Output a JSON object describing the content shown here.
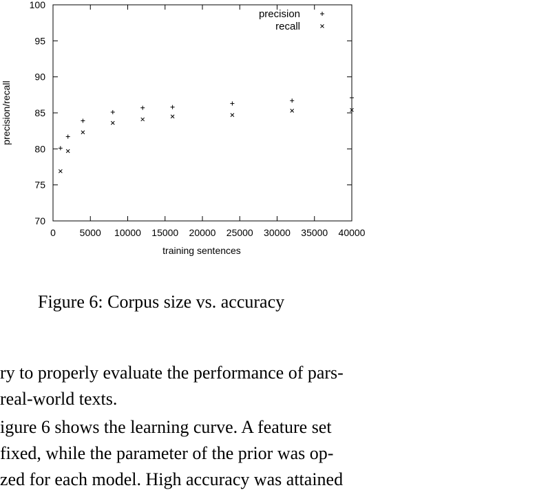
{
  "chart_data": {
    "type": "scatter",
    "xlabel": "training sentences",
    "ylabel": "precision/recall",
    "xlim": [
      0,
      40000
    ],
    "ylim": [
      70,
      100
    ],
    "x_ticks": [
      "0",
      "5000",
      "10000",
      "15000",
      "20000",
      "25000",
      "30000",
      "35000",
      "40000"
    ],
    "y_ticks": [
      "70",
      "75",
      "80",
      "85",
      "90",
      "95",
      "100"
    ],
    "legend_position": "top-right",
    "series": [
      {
        "name": "precision",
        "marker": "+",
        "x": [
          1000,
          2000,
          4000,
          8000,
          12000,
          16000,
          24000,
          32000,
          40000
        ],
        "y": [
          80.1,
          81.7,
          83.9,
          85.1,
          85.7,
          85.8,
          86.3,
          86.7,
          87.1
        ]
      },
      {
        "name": "recall",
        "marker": "x",
        "x": [
          1000,
          2000,
          4000,
          8000,
          12000,
          16000,
          24000,
          32000,
          40000
        ],
        "y": [
          76.9,
          79.7,
          82.3,
          83.6,
          84.1,
          84.5,
          84.7,
          85.3,
          85.4
        ]
      }
    ]
  },
  "figure": {
    "caption": "Figure 6: Corpus size vs. accuracy"
  },
  "body": {
    "lines": [
      "ry to properly evaluate the performance of pars-",
      "real-world texts.",
      "igure 6 shows the learning curve.  A feature set",
      " fixed, while the parameter of the prior was op-",
      "zed for each model. High accuracy was attained"
    ]
  }
}
